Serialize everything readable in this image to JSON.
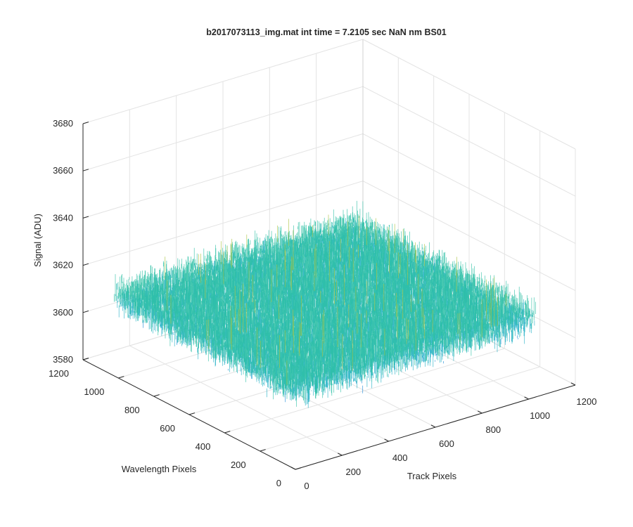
{
  "figure": {
    "background": "#ffffff",
    "axes_color": "#262626",
    "grid_color": "#e3e3e3"
  },
  "chart_data": {
    "type": "surface",
    "title": "b2017073113_img.mat int time = 7.2105 sec  NaN nm BS01",
    "xlabel": "Track Pixels",
    "ylabel": "Wavelength Pixels",
    "zlabel": "Signal (ADU)",
    "xlim": [
      0,
      1200
    ],
    "ylim": [
      0,
      1200
    ],
    "zlim": [
      3580,
      3680
    ],
    "xticks": [
      0,
      200,
      400,
      600,
      800,
      1000,
      1200
    ],
    "yticks": [
      0,
      200,
      400,
      600,
      800,
      1000,
      1200
    ],
    "zticks": [
      3580,
      3600,
      3620,
      3640,
      3660,
      3680
    ],
    "grid": true,
    "colormap": "parula",
    "colormap_colors": [
      "#3e26a8",
      "#1a8ad8",
      "#1fafc6",
      "#2dc0a4",
      "#a8c23e",
      "#f2c933",
      "#f9fb0e"
    ],
    "data_extent": {
      "x": [
        0,
        1030
      ],
      "y": [
        0,
        1024
      ]
    },
    "signal_mean": 3614,
    "signal_noise_range": [
      3592,
      3650
    ]
  }
}
